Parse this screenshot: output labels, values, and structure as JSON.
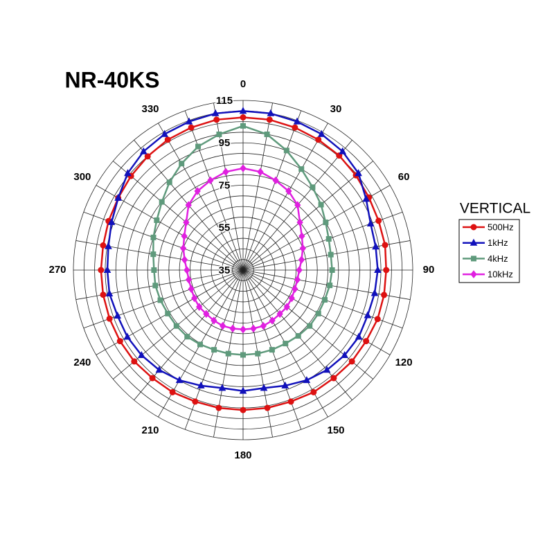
{
  "chart_data": {
    "type": "polar",
    "title": "NR-40KS",
    "legend_title": "VERTICAL",
    "legend": "right",
    "x": [
      0,
      10,
      20,
      30,
      40,
      50,
      60,
      70,
      80,
      90,
      100,
      110,
      120,
      130,
      140,
      150,
      160,
      170,
      180,
      190,
      200,
      210,
      220,
      230,
      240,
      250,
      260,
      270,
      280,
      290,
      300,
      310,
      320,
      330,
      340,
      350
    ],
    "xticks": [
      0,
      30,
      60,
      90,
      120,
      150,
      180,
      210,
      240,
      270,
      300,
      330
    ],
    "rlim": [
      35,
      115
    ],
    "rticks": [
      35,
      55,
      75,
      95,
      115
    ],
    "rgrid": [
      40,
      45,
      50,
      55,
      60,
      65,
      70,
      75,
      80,
      85,
      90,
      95,
      100,
      105,
      110,
      115
    ],
    "series": [
      {
        "name": "500Hz",
        "color": "#dd1111",
        "marker": "circle",
        "values": [
          107,
          107,
          106.5,
          106,
          105.5,
          104.5,
          103.5,
          103,
          103,
          102.5,
          102.5,
          102.5,
          102,
          102,
          101.5,
          101.5,
          101,
          101,
          101,
          101,
          101,
          101.5,
          101.5,
          102,
          102,
          102,
          102,
          102,
          102,
          102.5,
          103,
          104,
          105,
          106,
          106.5,
          107
        ]
      },
      {
        "name": "1kHz",
        "color": "#1111bb",
        "marker": "triangle",
        "values": [
          110,
          110,
          109.5,
          109,
          108,
          106,
          102,
          99,
          98.5,
          98.5,
          98,
          97.5,
          98,
          97.5,
          96.5,
          95,
          93,
          91.5,
          92,
          91.5,
          93,
          95,
          96.5,
          97.5,
          98,
          98,
          99,
          99,
          99.5,
          101,
          103,
          106,
          108,
          109,
          109.5,
          110
        ]
      },
      {
        "name": "4kHz",
        "color": "#5f9a7c",
        "marker": "square",
        "values": [
          103,
          100,
          95,
          90,
          86,
          83,
          80,
          78,
          77,
          77,
          76.5,
          76,
          76,
          76,
          75.5,
          75,
          75,
          75,
          75,
          75,
          75,
          75.5,
          76,
          76,
          76,
          76.5,
          77,
          77,
          78,
          80,
          82,
          85,
          89,
          93,
          97,
          100
        ]
      },
      {
        "name": "10kHz",
        "color": "#e020e0",
        "marker": "diamond",
        "values": [
          83,
          82,
          80,
          78,
          75,
          70,
          67,
          65,
          63,
          61.5,
          61,
          61,
          61.5,
          62,
          62,
          62.5,
          63,
          63,
          63,
          63,
          63,
          62.5,
          62,
          62,
          61.5,
          61,
          61,
          61.5,
          63,
          65,
          67,
          70,
          75,
          78,
          80,
          82
        ]
      }
    ]
  }
}
